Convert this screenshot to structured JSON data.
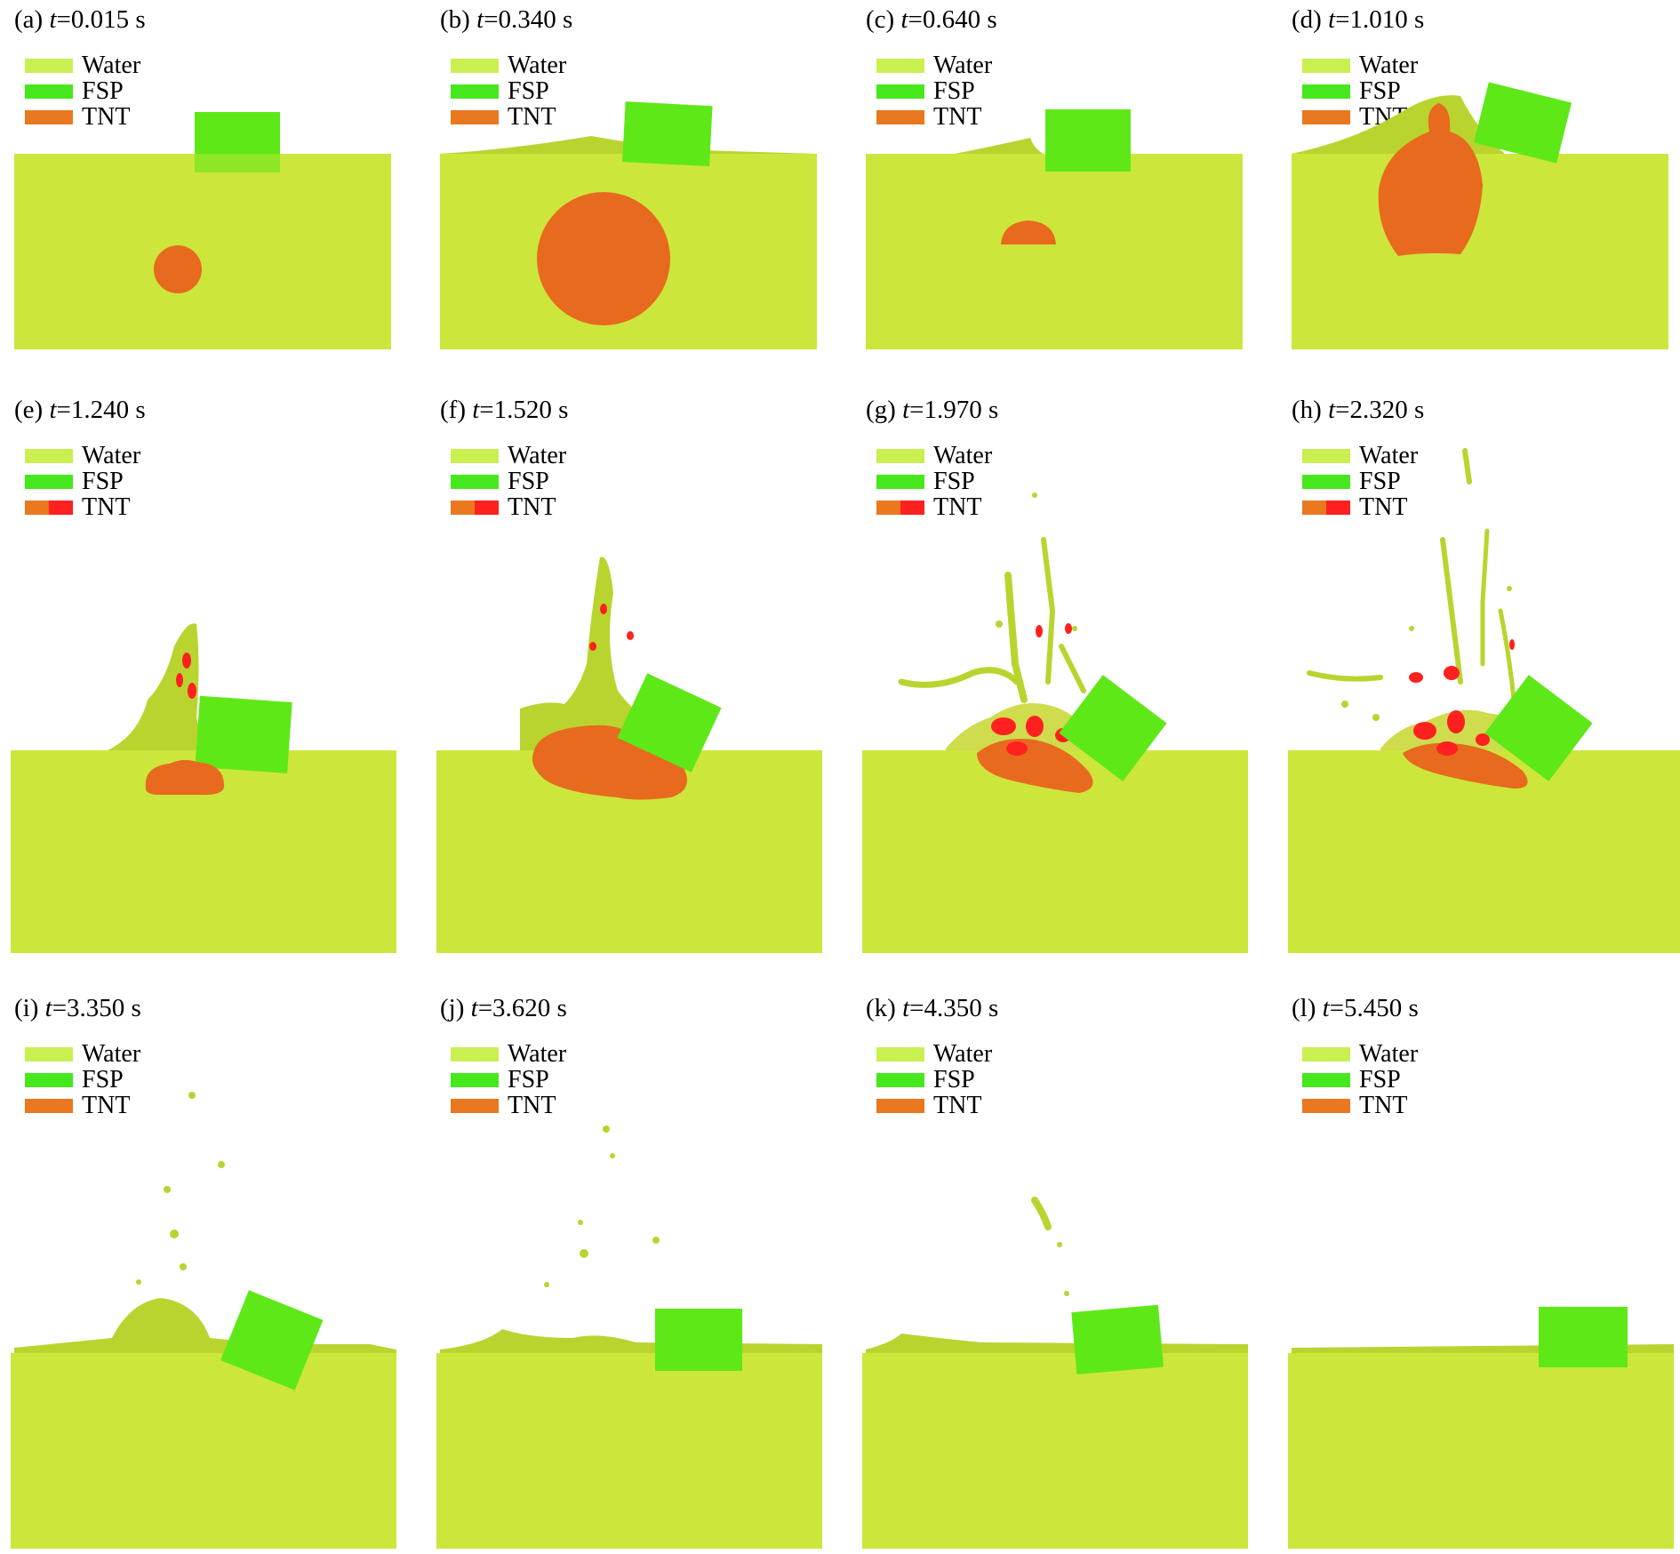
{
  "colors": {
    "water": "#cde63b",
    "water_dark": "#b9d42e",
    "fsp": "#5ee817",
    "tnt": "#e86a1e",
    "tnt_hot": "#ff2020",
    "legend_water": "#c9f050",
    "legend_fsp": "#46e81d",
    "legend_tnt": "#e9781e"
  },
  "legend_labels": {
    "water": "Water",
    "fsp": "FSP",
    "tnt": "TNT"
  },
  "panels": [
    {
      "id": "a",
      "label": "(a) ",
      "var": "t",
      "value": "=0.015 s",
      "tnt_swatch": "orange"
    },
    {
      "id": "b",
      "label": "(b) ",
      "var": "t",
      "value": "=0.340 s",
      "tnt_swatch": "orange"
    },
    {
      "id": "c",
      "label": "(c) ",
      "var": "t",
      "value": "=0.640 s",
      "tnt_swatch": "orange"
    },
    {
      "id": "d",
      "label": "(d) ",
      "var": "t",
      "value": "=1.010 s",
      "tnt_swatch": "orange"
    },
    {
      "id": "e",
      "label": "(e) ",
      "var": "t",
      "value": "=1.240 s",
      "tnt_swatch": "orange-red"
    },
    {
      "id": "f",
      "label": "(f) ",
      "var": "t",
      "value": "=1.520 s",
      "tnt_swatch": "orange-red"
    },
    {
      "id": "g",
      "label": "(g) ",
      "var": "t",
      "value": "=1.970 s",
      "tnt_swatch": "orange-red"
    },
    {
      "id": "h",
      "label": "(h) ",
      "var": "t",
      "value": "=2.320 s",
      "tnt_swatch": "orange-red"
    },
    {
      "id": "i",
      "label": "(i) ",
      "var": "t",
      "value": "=3.350 s",
      "tnt_swatch": "orange"
    },
    {
      "id": "j",
      "label": "(j) ",
      "var": "t",
      "value": "=3.620 s",
      "tnt_swatch": "orange"
    },
    {
      "id": "k",
      "label": "(k) ",
      "var": "t",
      "value": "=4.350 s",
      "tnt_swatch": "orange"
    },
    {
      "id": "l",
      "label": "(l) ",
      "var": "t",
      "value": "=5.450 s",
      "tnt_swatch": "orange"
    }
  ]
}
